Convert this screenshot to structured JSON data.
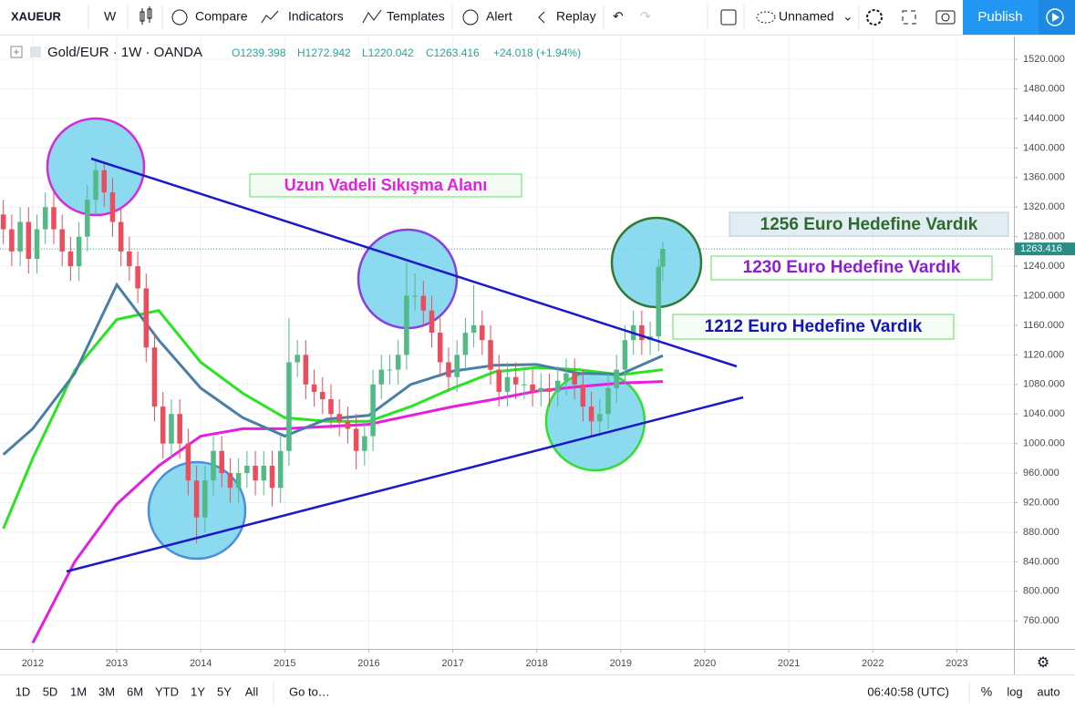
{
  "toolbar": {
    "symbol": "XAUEUR",
    "interval": "W",
    "compare": "Compare",
    "indicators": "Indicators",
    "templates": "Templates",
    "alert": "Alert",
    "replay": "Replay",
    "layout": "Unnamed",
    "publish": "Publish"
  },
  "legend": {
    "instrument": "Gold/EUR · 1W · OANDA",
    "ohlc": [
      "O1239.398",
      "H1272.942",
      "L1220.042",
      "C1263.416"
    ],
    "change": "+24.018 (+1.94%)"
  },
  "bottom_bar": {
    "ranges": [
      "1D",
      "5D",
      "1M",
      "3M",
      "6M",
      "YTD",
      "1Y",
      "5Y",
      "All"
    ],
    "goto": "Go to…",
    "time": "06:40:58 (UTC)",
    "percent": "%",
    "log": "log",
    "auto": "auto"
  },
  "chart_data": {
    "type": "candlestick",
    "annotations": [
      "Uzun Vadeli Sıkışma Alanı",
      "1256 Euro Hedefine Vardık",
      "1230 Euro Hedefine Vardık",
      "1212 Euro Hedefine Vardık"
    ],
    "xlim": [
      2011.61,
      2023.68
    ],
    "xticks": [
      2012,
      2013,
      2014,
      2015,
      2016,
      2017,
      2018,
      2019,
      2020,
      2021,
      2022,
      2023
    ],
    "ylim": [
      722,
      1551
    ],
    "yticks": [
      {
        "value": 760,
        "label": "760.000"
      },
      {
        "value": 800,
        "label": "800.000"
      },
      {
        "value": 840,
        "label": "840.000"
      },
      {
        "value": 880,
        "label": "880.000"
      },
      {
        "value": 920,
        "label": "920.000"
      },
      {
        "value": 960,
        "label": "960.000"
      },
      {
        "value": 1000,
        "label": "1000.000"
      },
      {
        "value": 1040,
        "label": "1040.000"
      },
      {
        "value": 1080,
        "label": "1080.000"
      },
      {
        "value": 1120,
        "label": "1120.000"
      },
      {
        "value": 1160,
        "label": "1160.000"
      },
      {
        "value": 1200,
        "label": "1200.000"
      },
      {
        "value": 1240,
        "label": "1240.000"
      },
      {
        "value": 1280,
        "label": "1280.000"
      },
      {
        "value": 1320,
        "label": "1320.000"
      },
      {
        "value": 1360,
        "label": "1360.000"
      },
      {
        "value": 1400,
        "label": "1400.000"
      },
      {
        "value": 1440,
        "label": "1440.000"
      },
      {
        "value": 1480,
        "label": "1480.000"
      },
      {
        "value": 1520,
        "label": "1520.000"
      }
    ],
    "grid": true,
    "up_color": "#53b987",
    "down_color": "#eb4d5c",
    "last_price": 1263.416,
    "x": [
      2011.65,
      2011.75,
      2011.85,
      2011.95,
      2012.05,
      2012.15,
      2012.25,
      2012.35,
      2012.45,
      2012.55,
      2012.65,
      2012.75,
      2012.85,
      2012.95,
      2013.05,
      2013.15,
      2013.25,
      2013.35,
      2013.45,
      2013.55,
      2013.65,
      2013.75,
      2013.85,
      2013.95,
      2014.05,
      2014.15,
      2014.25,
      2014.35,
      2014.45,
      2014.55,
      2014.65,
      2014.75,
      2014.85,
      2014.95,
      2015.05,
      2015.15,
      2015.25,
      2015.35,
      2015.45,
      2015.55,
      2015.65,
      2015.75,
      2015.85,
      2015.95,
      2016.05,
      2016.15,
      2016.25,
      2016.35,
      2016.45,
      2016.55,
      2016.65,
      2016.75,
      2016.85,
      2016.95,
      2017.05,
      2017.15,
      2017.25,
      2017.35,
      2017.45,
      2017.55,
      2017.65,
      2017.75,
      2017.85,
      2017.95,
      2018.05,
      2018.15,
      2018.25,
      2018.35,
      2018.45,
      2018.55,
      2018.65,
      2018.75,
      2018.85,
      2018.95,
      2019.05,
      2019.15,
      2019.25,
      2019.35,
      2019.45,
      2019.5
    ],
    "open": [
      1310,
      1290,
      1260,
      1300,
      1250,
      1290,
      1320,
      1290,
      1260,
      1240,
      1280,
      1330,
      1370,
      1340,
      1300,
      1260,
      1240,
      1210,
      1130,
      1050,
      1000,
      1040,
      1000,
      950,
      900,
      950,
      990,
      960,
      940,
      960,
      970,
      950,
      970,
      940,
      990,
      1110,
      1120,
      1080,
      1070,
      1060,
      1040,
      1030,
      1020,
      990,
      1010,
      1080,
      1100,
      1100,
      1120,
      1200,
      1200,
      1180,
      1150,
      1110,
      1090,
      1120,
      1150,
      1160,
      1140,
      1100,
      1070,
      1090,
      1080,
      1080,
      1070,
      1075,
      1070,
      1085,
      1095,
      1080,
      1050,
      1030,
      1040,
      1075,
      1100,
      1140,
      1160,
      1140,
      1145,
      1239.398
    ],
    "high": [
      1330,
      1310,
      1320,
      1320,
      1310,
      1340,
      1340,
      1310,
      1280,
      1300,
      1350,
      1385,
      1380,
      1360,
      1320,
      1280,
      1260,
      1230,
      1150,
      1070,
      1060,
      1060,
      1020,
      970,
      970,
      1010,
      1010,
      980,
      980,
      990,
      990,
      990,
      990,
      1010,
      1170,
      1140,
      1140,
      1100,
      1090,
      1080,
      1060,
      1050,
      1040,
      1030,
      1100,
      1120,
      1120,
      1140,
      1245,
      1230,
      1220,
      1200,
      1170,
      1130,
      1140,
      1170,
      1215,
      1180,
      1160,
      1120,
      1110,
      1110,
      1100,
      1100,
      1095,
      1095,
      1105,
      1115,
      1115,
      1100,
      1070,
      1060,
      1095,
      1120,
      1160,
      1180,
      1180,
      1165,
      1250,
      1272.942
    ],
    "low": [
      1270,
      1240,
      1240,
      1230,
      1230,
      1270,
      1270,
      1240,
      1220,
      1220,
      1260,
      1310,
      1320,
      1280,
      1240,
      1220,
      1190,
      1110,
      1030,
      980,
      980,
      980,
      930,
      865,
      880,
      930,
      940,
      920,
      920,
      940,
      930,
      930,
      915,
      920,
      970,
      1090,
      1060,
      1050,
      1040,
      1020,
      1010,
      1000,
      965,
      970,
      990,
      1060,
      1080,
      1080,
      1100,
      1180,
      1160,
      1130,
      1090,
      1070,
      1070,
      1100,
      1130,
      1120,
      1080,
      1050,
      1050,
      1060,
      1060,
      1050,
      1050,
      1050,
      1050,
      1065,
      1060,
      1030,
      1010,
      1010,
      1020,
      1055,
      1080,
      1120,
      1120,
      1120,
      1125,
      1220.042
    ],
    "close": [
      1290,
      1260,
      1300,
      1250,
      1290,
      1320,
      1290,
      1260,
      1240,
      1280,
      1330,
      1370,
      1340,
      1300,
      1260,
      1240,
      1210,
      1130,
      1050,
      1000,
      1040,
      1000,
      950,
      900,
      950,
      990,
      960,
      940,
      960,
      970,
      950,
      970,
      940,
      990,
      1110,
      1120,
      1080,
      1070,
      1060,
      1040,
      1030,
      1020,
      990,
      1010,
      1080,
      1100,
      1100,
      1120,
      1200,
      1200,
      1180,
      1150,
      1110,
      1090,
      1120,
      1150,
      1160,
      1140,
      1100,
      1070,
      1090,
      1080,
      1080,
      1070,
      1075,
      1070,
      1085,
      1095,
      1080,
      1050,
      1030,
      1040,
      1075,
      1100,
      1140,
      1160,
      1140,
      1145,
      1239.398,
      1263.416
    ],
    "overlays": {
      "x": [
        2011.65,
        2012.0,
        2012.5,
        2013.0,
        2013.5,
        2014.0,
        2014.5,
        2015.0,
        2015.5,
        2016.0,
        2016.5,
        2017.0,
        2017.5,
        2018.0,
        2018.5,
        2019.0,
        2019.5
      ],
      "series": [
        {
          "color": "#4a7fa5",
          "values": [
            985,
            1020,
            1095,
            1215,
            1140,
            1075,
            1035,
            1010,
            1033,
            1038,
            1080,
            1098,
            1106,
            1107,
            1095,
            1094,
            1119
          ]
        },
        {
          "color": "#27e51f",
          "values": [
            885,
            980,
            1099,
            1168,
            1180,
            1110,
            1068,
            1035,
            1030,
            1030,
            1050,
            1075,
            1097,
            1103,
            1100,
            1093,
            1100
          ]
        },
        {
          "color": "#e61ee0",
          "values": [
            null,
            730,
            840,
            918,
            970,
            1010,
            1020,
            1020,
            1023,
            1026,
            1038,
            1050,
            1060,
            1071,
            1077,
            1082,
            1084
          ]
        }
      ]
    }
  }
}
